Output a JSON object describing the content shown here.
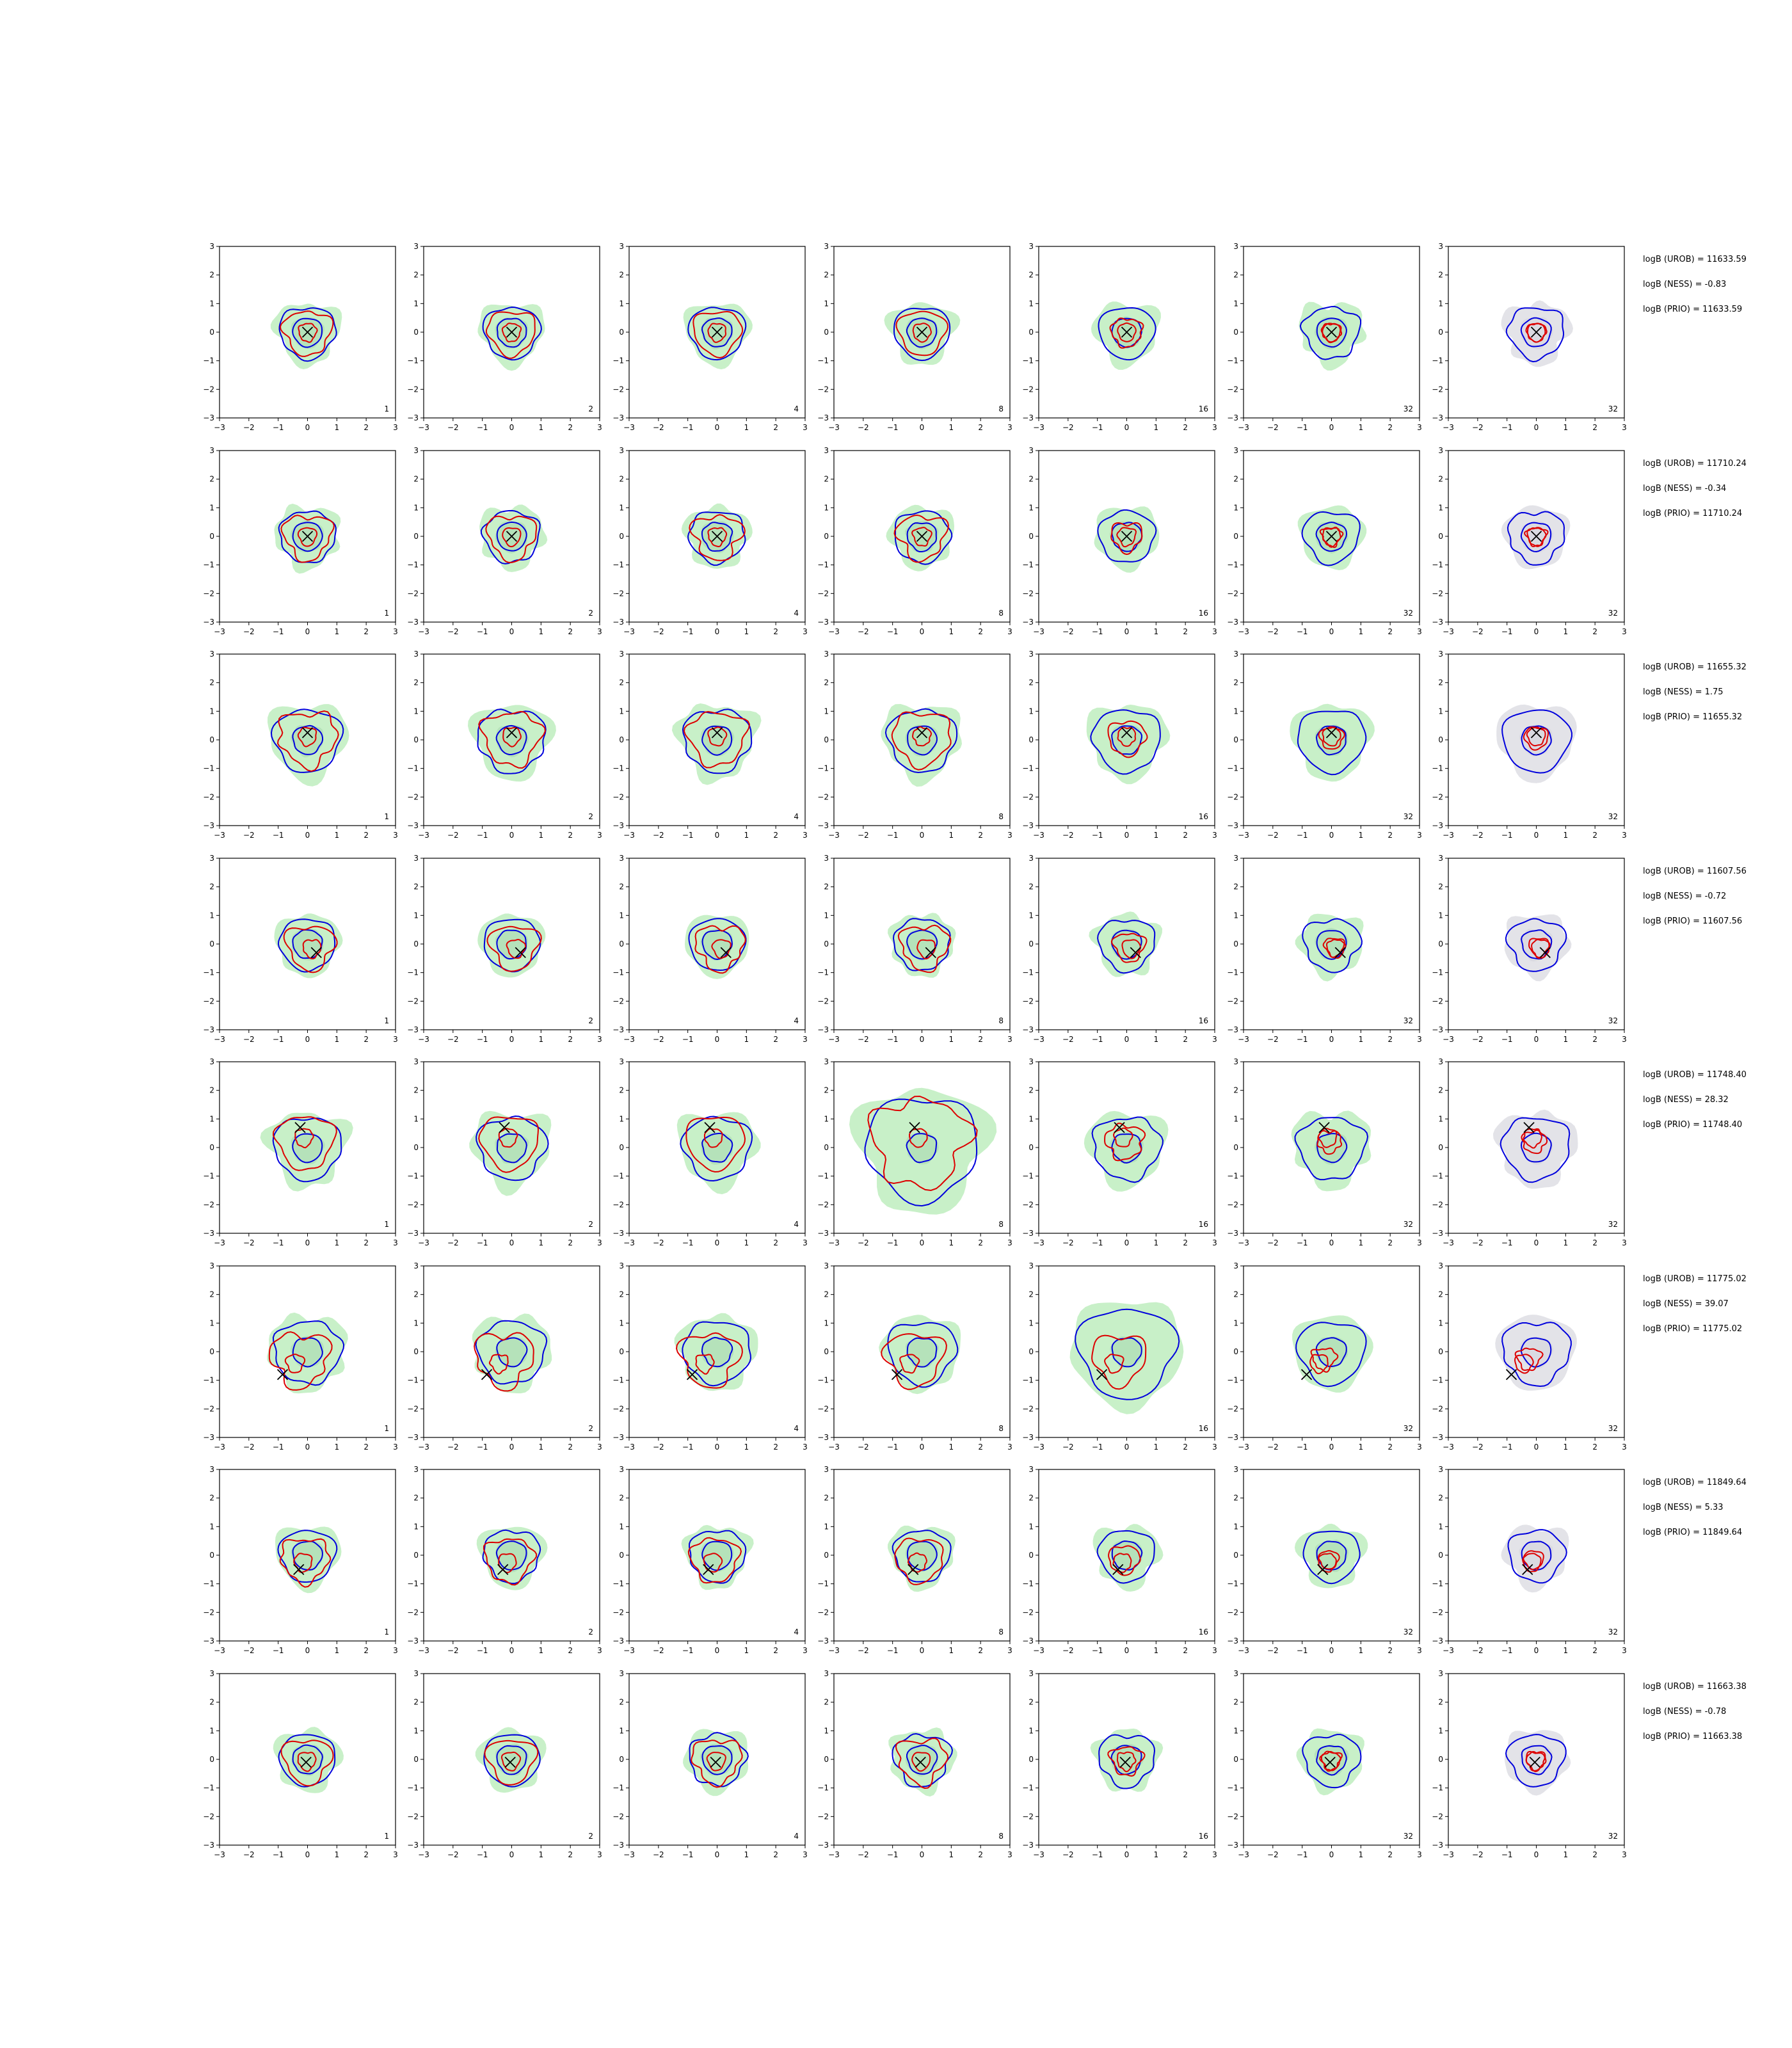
{
  "figure": {
    "axis": {
      "xlim": [
        -3,
        3
      ],
      "ylim": [
        -3,
        3
      ],
      "ticks": [
        -3,
        -2,
        -1,
        0,
        1,
        2,
        3
      ]
    },
    "colors": {
      "fill_green": "#c8f0c8",
      "fill_green_dark": "#a8d8b0",
      "fill_gray": "#e3e3e8",
      "contour_blue": "#0000dd",
      "contour_red": "#dd0000",
      "marker": "#000000"
    }
  },
  "chart_data": {
    "type": "grid of 2D contour plots",
    "x_range": [
      -3,
      3
    ],
    "y_range": [
      -3,
      3
    ],
    "column_labels": [
      "1",
      "2",
      "4",
      "8",
      "16",
      "32",
      "32"
    ],
    "rows": [
      {
        "logb_urob": "logB (UROB) = 11633.59",
        "logb_ness": "logB (NESS) = -0.83",
        "logb_prio": "logB (PRIO) = 11633.59",
        "marker": [
          0.0,
          0.0
        ]
      },
      {
        "logb_urob": "logB (UROB) = 11710.24",
        "logb_ness": "logB (NESS) = -0.34",
        "logb_prio": "logB (PRIO) = 11710.24",
        "marker": [
          0.0,
          0.0
        ]
      },
      {
        "logb_urob": "logB (UROB) = 11655.32",
        "logb_ness": "logB (NESS) = 1.75",
        "logb_prio": "logB (PRIO) = 11655.32",
        "marker": [
          0.0,
          0.25
        ]
      },
      {
        "logb_urob": "logB (UROB) = 11607.56",
        "logb_ness": "logB (NESS) = -0.72",
        "logb_prio": "logB (PRIO) = 11607.56",
        "marker": [
          0.3,
          -0.3
        ]
      },
      {
        "logb_urob": "logB (UROB) = 11748.40",
        "logb_ness": "logB (NESS) = 28.32",
        "logb_prio": "logB (PRIO) = 11748.40",
        "marker": [
          -0.25,
          0.7
        ]
      },
      {
        "logb_urob": "logB (UROB) = 11775.02",
        "logb_ness": "logB (NESS) = 39.07",
        "logb_prio": "logB (PRIO) = 11775.02",
        "marker": [
          -0.85,
          -0.8
        ]
      },
      {
        "logb_urob": "logB (UROB) = 11849.64",
        "logb_ness": "logB (NESS) = 5.33",
        "logb_prio": "logB (PRIO) = 11849.64",
        "marker": [
          -0.3,
          -0.5
        ]
      },
      {
        "logb_urob": "logB (UROB) = 11663.38",
        "logb_ness": "logB (NESS) = -0.78",
        "logb_prio": "logB (PRIO) = 11663.38",
        "marker": [
          -0.05,
          -0.1
        ]
      }
    ],
    "contours": {
      "blue": "outer posterior contours",
      "red": "sample contours",
      "green_fill": "reference density (columns 1-6)",
      "gray_fill": "reference density (column 7)"
    }
  }
}
